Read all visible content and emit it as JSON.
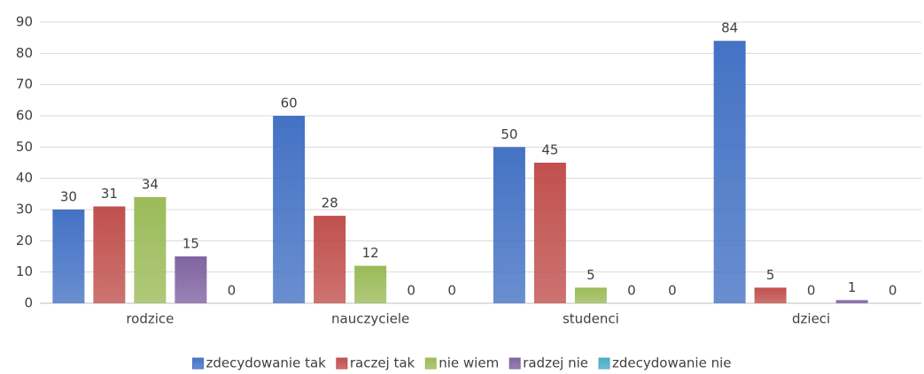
{
  "chart_data": {
    "type": "bar",
    "categories": [
      "rodzice",
      "nauczyciele",
      "studenci",
      "dzieci"
    ],
    "series": [
      {
        "name": "zdecydowanie tak",
        "color": "#4472c4",
        "values": [
          30,
          60,
          50,
          84
        ]
      },
      {
        "name": "raczej tak",
        "color": "#c0504d",
        "values": [
          31,
          28,
          45,
          5
        ]
      },
      {
        "name": "nie wiem",
        "color": "#9bbb59",
        "values": [
          34,
          12,
          5,
          0
        ]
      },
      {
        "name": "radzej nie",
        "color": "#8064a2",
        "values": [
          15,
          0,
          0,
          1
        ]
      },
      {
        "name": "zdecydowanie nie",
        "color": "#4bacc6",
        "values": [
          0,
          0,
          0,
          0
        ]
      }
    ],
    "ylim": [
      0,
      90
    ],
    "yticks": [
      0,
      10,
      20,
      30,
      40,
      50,
      60,
      70,
      80,
      90
    ],
    "grid": true,
    "legend": "bottom"
  }
}
